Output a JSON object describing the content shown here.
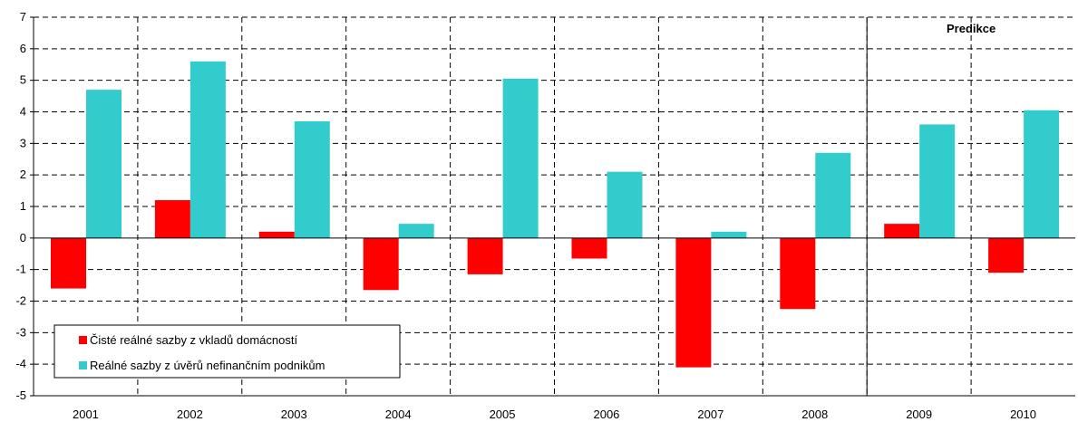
{
  "chart_data": {
    "type": "bar",
    "categories": [
      "2001",
      "2002",
      "2003",
      "2004",
      "2005",
      "2006",
      "2007",
      "2008",
      "2009",
      "2010"
    ],
    "series": [
      {
        "name": "Čisté reálné sazby z vkladů domácností",
        "color": "#ff0000",
        "values": [
          -1.6,
          1.2,
          0.2,
          -1.65,
          -1.15,
          -0.65,
          -4.1,
          -2.25,
          0.45,
          -1.1
        ]
      },
      {
        "name": "Reálné sazby z úvěrů nefinančním podnikům",
        "color": "#33cccc",
        "values": [
          4.7,
          5.6,
          3.7,
          0.45,
          5.05,
          2.1,
          0.2,
          2.7,
          3.6,
          4.05
        ]
      }
    ],
    "ylim": [
      -5,
      7
    ],
    "yticks": [
      "7",
      "6",
      "5",
      "4",
      "3",
      "2",
      "1",
      "0",
      "-1",
      "-2",
      "-3",
      "-4",
      "-5"
    ],
    "grid": true,
    "legend_placement": "bottom-left",
    "annotation": "Predikce",
    "forecast_start_category": "2009"
  }
}
